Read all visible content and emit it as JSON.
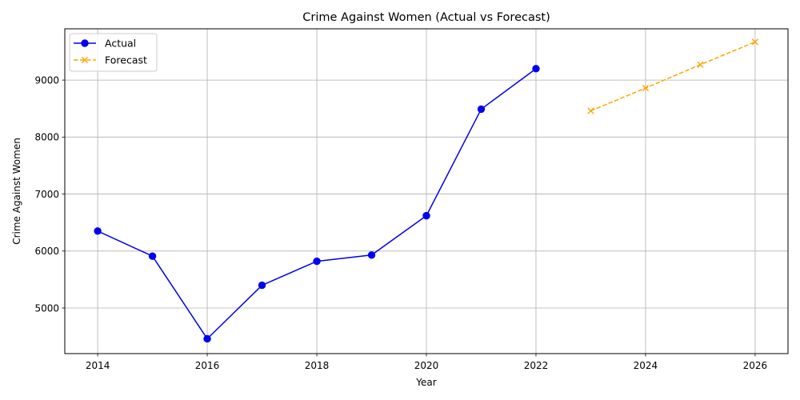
{
  "chart_data": {
    "type": "line",
    "title": "Crime Against Women (Actual vs Forecast)",
    "xlabel": "Year",
    "ylabel": "Crime Against Women",
    "xlim": [
      2013.4,
      2026.6
    ],
    "ylim": [
      4200,
      9900
    ],
    "x_ticks": [
      2014,
      2016,
      2018,
      2020,
      2022,
      2024,
      2026
    ],
    "y_ticks": [
      5000,
      6000,
      7000,
      8000,
      9000
    ],
    "grid": true,
    "legend_position": "top-left",
    "series": [
      {
        "name": "Actual",
        "color": "#0000ee",
        "line_style": "solid",
        "marker": "circle",
        "x": [
          2014,
          2015,
          2016,
          2017,
          2018,
          2019,
          2020,
          2021,
          2022
        ],
        "y": [
          6350,
          5910,
          4460,
          5400,
          5820,
          5930,
          6620,
          8490,
          9200
        ]
      },
      {
        "name": "Forecast",
        "color": "#ffa500",
        "line_style": "dashed",
        "marker": "x",
        "x": [
          2023,
          2024,
          2025,
          2026
        ],
        "y": [
          8460,
          8860,
          9270,
          9670
        ]
      }
    ]
  }
}
